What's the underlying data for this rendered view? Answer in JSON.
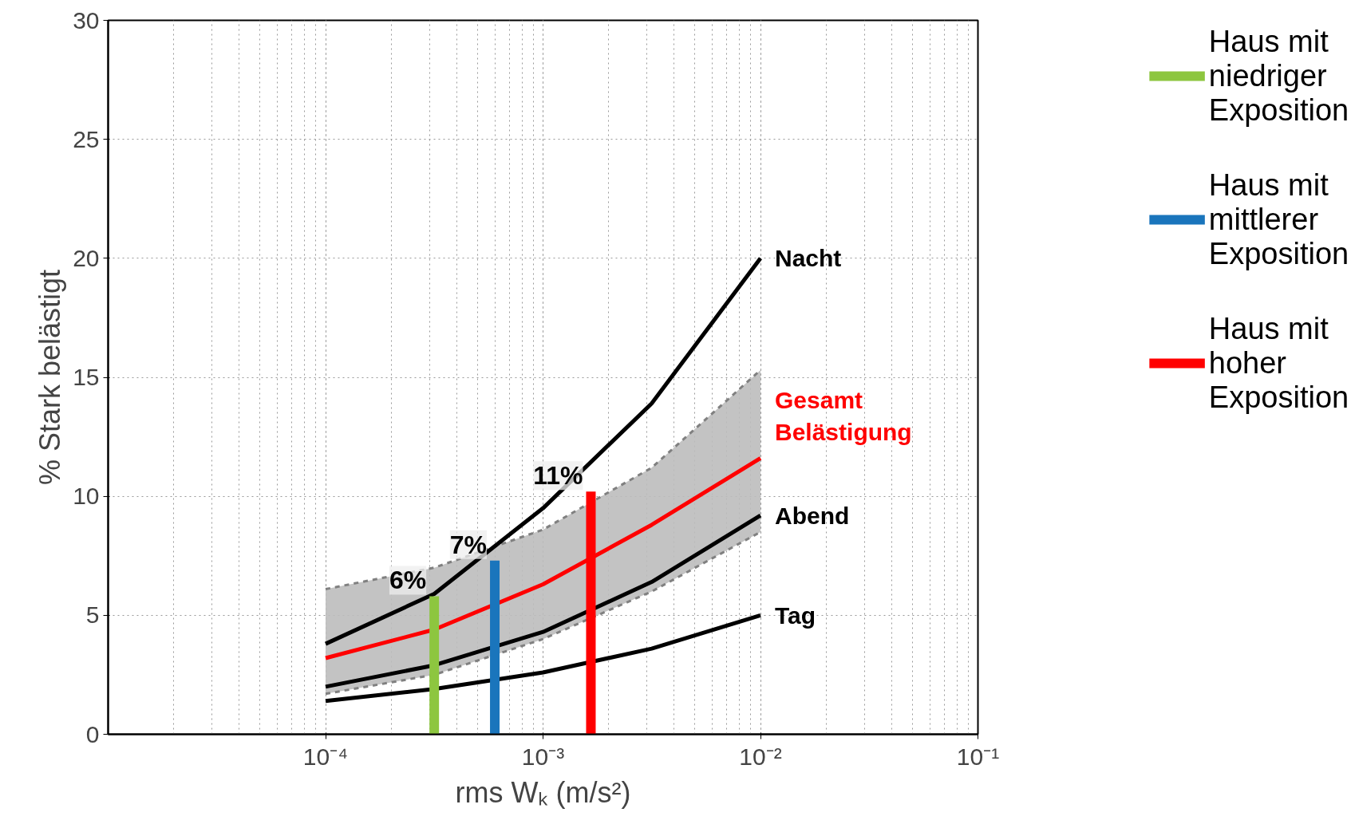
{
  "chart_data": {
    "type": "line",
    "xlabel": "rms Wₖ (m/s²)",
    "ylabel": "% Stark belästigt",
    "log": "x",
    "xlim": [
      1e-05,
      0.1
    ],
    "ylim": [
      0,
      30
    ],
    "xticks": [
      {
        "value": 0.0001,
        "label": "10⁻⁴"
      },
      {
        "value": 0.001,
        "label": "10⁻³"
      },
      {
        "value": 0.01,
        "label": "10⁻²"
      },
      {
        "value": 0.1,
        "label": "10⁻¹"
      }
    ],
    "yticks": [
      0,
      5,
      10,
      15,
      20,
      25,
      30
    ],
    "grid": true,
    "legend": "right",
    "line_style": "solid",
    "marker": "none",
    "series": [
      {
        "name": "Nacht",
        "color": "#000000",
        "x": [
          0.0001,
          0.000316,
          0.001,
          0.00316,
          0.01
        ],
        "values": [
          3.8,
          5.9,
          9.5,
          13.9,
          20
        ]
      },
      {
        "name": "Gesamt Belästigung",
        "color": "#ff0000",
        "x": [
          0.0001,
          0.000316,
          0.001,
          0.00316,
          0.01
        ],
        "values": [
          3.2,
          4.4,
          6.3,
          8.8,
          11.6
        ],
        "lower": [
          1.7,
          2.5,
          4.0,
          6.0,
          8.5
        ],
        "upper": [
          6.1,
          7.0,
          8.6,
          11.2,
          15.3
        ]
      },
      {
        "name": "Abend",
        "color": "#000000",
        "x": [
          0.0001,
          0.000316,
          0.001,
          0.00316,
          0.01
        ],
        "values": [
          2.0,
          2.9,
          4.3,
          6.4,
          9.2
        ]
      },
      {
        "name": "Tag",
        "color": "#000000",
        "x": [
          0.0001,
          0.000316,
          0.001,
          0.00316,
          0.01
        ],
        "values": [
          1.4,
          1.9,
          2.6,
          3.6,
          5.0
        ]
      },
      {
        "name": "Haus mit\nniedriger\nExposition",
        "type": "bar",
        "color": "#8dc63f",
        "x": [
          0.000316
        ],
        "values": [
          5.8
        ]
      },
      {
        "name": "Haus mit\nmittlerer\nExposition",
        "type": "bar",
        "color": "#1a75bc",
        "x": [
          0.0006
        ],
        "values": [
          7.3
        ]
      },
      {
        "name": "Haus mit\nhoher\nExposition",
        "type": "bar",
        "color": "#ff0000",
        "x": [
          0.00166
        ],
        "values": [
          10.2
        ]
      }
    ],
    "annotations": [
      {
        "text": "6%",
        "x": 0.000316,
        "y": 5.8
      },
      {
        "text": "7%",
        "x": 0.0006,
        "y": 7.3
      },
      {
        "text": "11%",
        "x": 0.00166,
        "y": 10.2
      }
    ]
  }
}
